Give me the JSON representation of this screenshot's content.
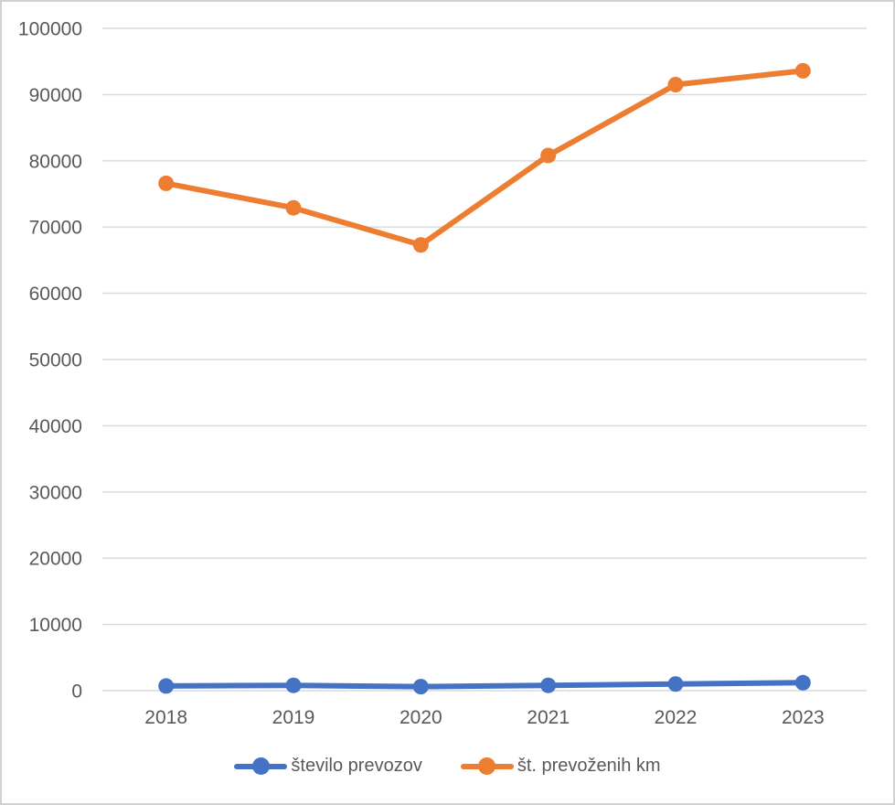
{
  "chart_data": {
    "type": "line",
    "title": "",
    "xlabel": "",
    "ylabel": "",
    "categories": [
      "2018",
      "2019",
      "2020",
      "2021",
      "2022",
      "2023"
    ],
    "series": [
      {
        "name": "število prevozov",
        "color": "#4472C4",
        "values": [
          700,
          800,
          600,
          800,
          1000,
          1200
        ]
      },
      {
        "name": "št. prevoženih km",
        "color": "#ED7D31",
        "values": [
          76600,
          72900,
          67300,
          80800,
          91500,
          93600
        ]
      }
    ],
    "ylim": [
      0,
      100000
    ],
    "yticks": [
      0,
      10000,
      20000,
      30000,
      40000,
      50000,
      60000,
      70000,
      80000,
      90000,
      100000
    ],
    "grid": true,
    "legend_position": "bottom",
    "colors": {
      "grid": "#D9D9D9",
      "text": "#595959",
      "background": "#FFFFFF",
      "frame_border": "#D2D2D2"
    }
  }
}
